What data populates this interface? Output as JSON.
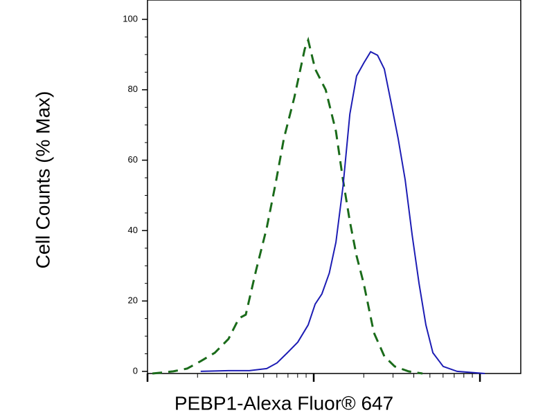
{
  "chart_data": {
    "type": "line",
    "x_label": "PEBP1-Alexa Fluor® 647",
    "y_label": "Cell Counts (% Max)",
    "xscale": "log",
    "xlim": [
      1,
      176
    ],
    "xticks": [
      1,
      10,
      100
    ],
    "ylim": [
      -0.6,
      105.5
    ],
    "yticks": [
      0,
      20,
      40,
      60,
      80,
      100
    ],
    "series": [
      {
        "color": "#1a6b1a",
        "dash": true,
        "x": [
          1.07,
          1.43,
          1.73,
          2.09,
          2.54,
          3.07,
          3.55,
          3.9,
          4.51,
          5.21,
          5.9,
          6.62,
          7.64,
          8.83,
          9.26,
          10.2,
          11.8,
          13.6,
          15,
          16.5,
          18.1,
          20,
          23,
          26.6,
          30.7,
          37.2,
          45.1
        ],
        "values": [
          -0.6,
          0,
          0.8,
          2.9,
          5.3,
          9.2,
          15.1,
          16.1,
          28.9,
          40.7,
          53.4,
          66.2,
          77.8,
          91.6,
          94.1,
          85.9,
          80,
          68.2,
          54.4,
          42.6,
          32.8,
          24.9,
          11,
          4.3,
          1.4,
          0,
          -0.6
        ]
      },
      {
        "color": "#1c1cb4",
        "dash": false,
        "x": [
          2.09,
          3.07,
          4.1,
          5.21,
          6.01,
          6.94,
          8.02,
          9.26,
          10.2,
          11.2,
          12.4,
          13.6,
          15,
          16.5,
          18.1,
          20,
          22,
          24.2,
          26.6,
          29.3,
          32.2,
          35.5,
          39.1,
          43,
          47.3,
          52.1,
          60.1,
          72.9,
          107
        ],
        "values": [
          0,
          0.2,
          0.2,
          0.8,
          2.4,
          5.3,
          8.3,
          13.2,
          19.1,
          22,
          27.9,
          36.7,
          52.5,
          73.1,
          83.9,
          87.6,
          90.8,
          89.8,
          85.9,
          76,
          66.2,
          54.4,
          38.7,
          25,
          13.2,
          5.3,
          1.4,
          0,
          -0.6
        ]
      }
    ]
  }
}
